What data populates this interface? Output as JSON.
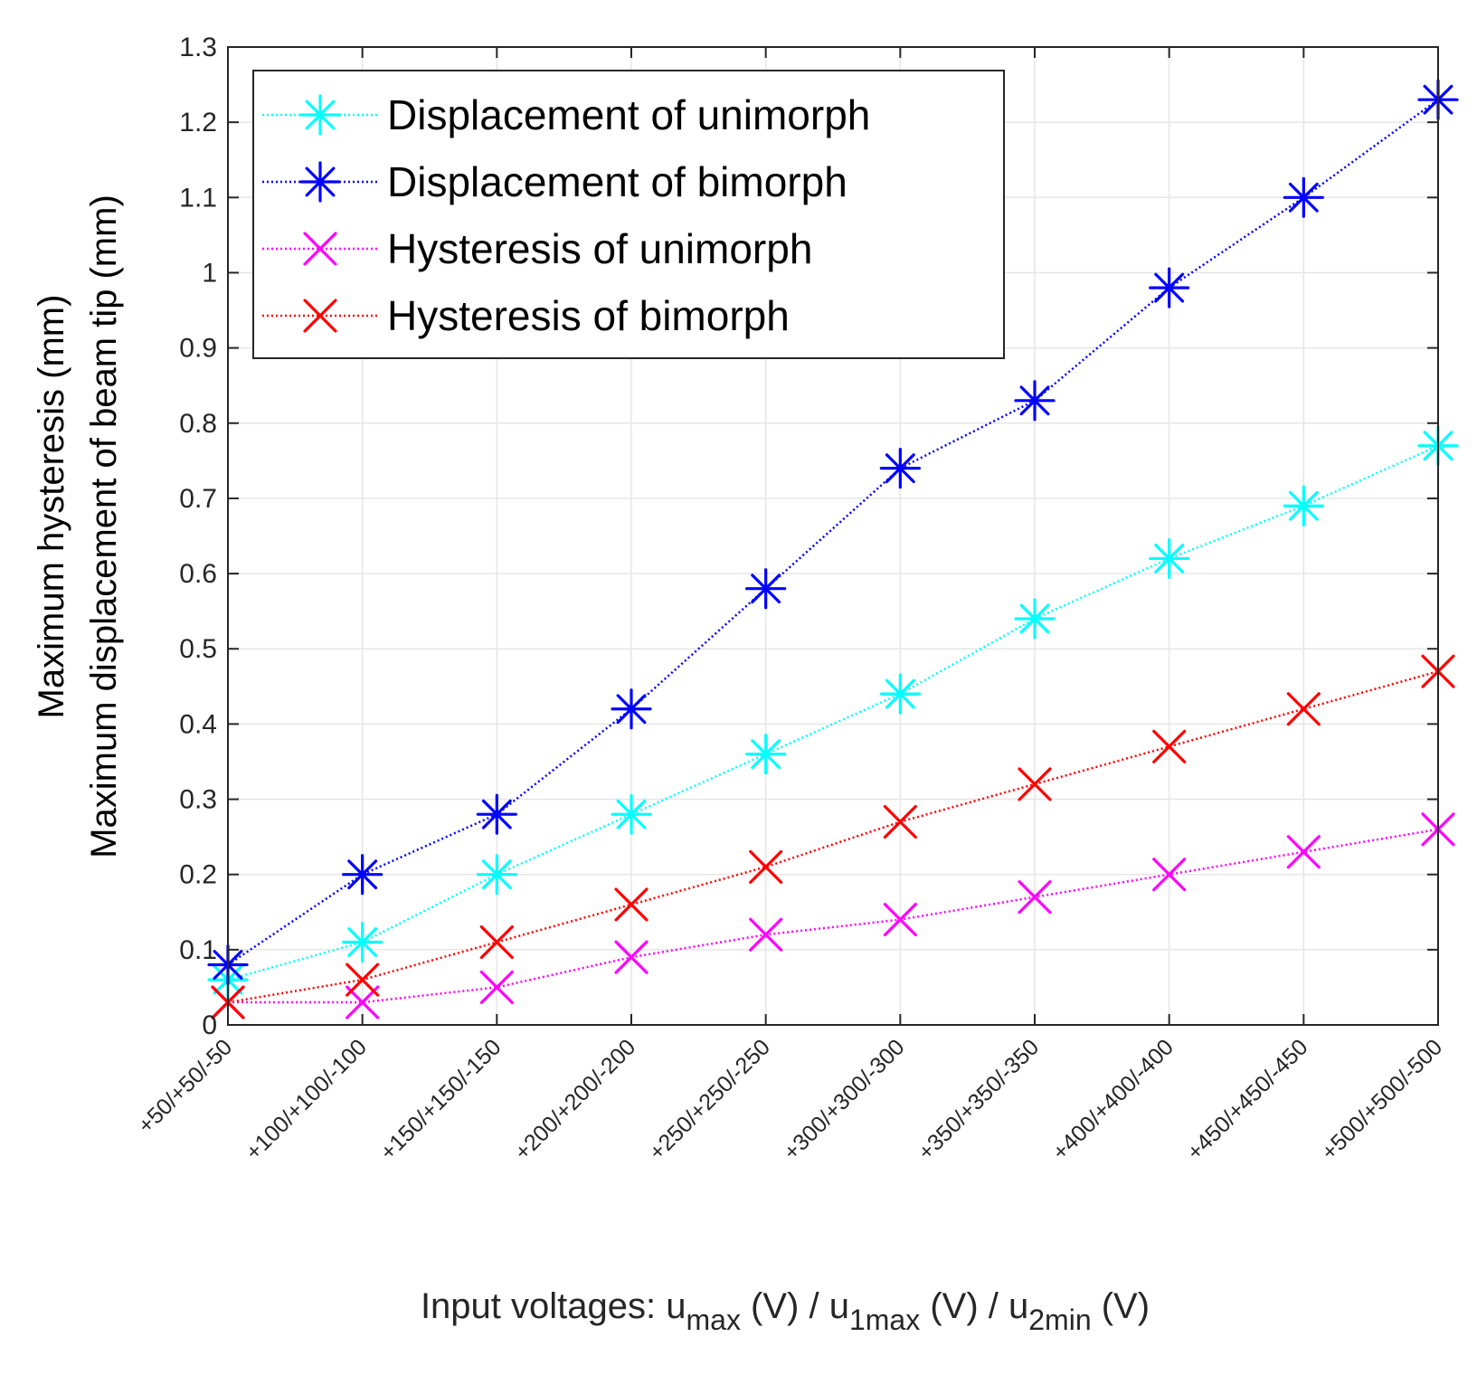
{
  "chart_data": {
    "type": "line",
    "title": "",
    "categories": [
      "+50/+50/-50",
      "+100/+100/-100",
      "+150/+150/-150",
      "+200/+200/-200",
      "+250/+250/-250",
      "+300/+300/-300",
      "+350/+350/-350",
      "+400/+400/-400",
      "+450/+450/-450",
      "+500/+500/-500"
    ],
    "series": [
      {
        "name": "Displacement of unimorph",
        "color": "#00ffff",
        "marker": "asterisk",
        "values": [
          0.06,
          0.11,
          0.2,
          0.28,
          0.36,
          0.44,
          0.54,
          0.62,
          0.69,
          0.77
        ]
      },
      {
        "name": "Displacement of bimorph",
        "color": "#0000ff",
        "marker": "asterisk",
        "values": [
          0.08,
          0.2,
          0.28,
          0.42,
          0.58,
          0.74,
          0.83,
          0.98,
          1.1,
          1.23
        ]
      },
      {
        "name": "Hysteresis of unimorph",
        "color": "#ff00ff",
        "marker": "cross",
        "values": [
          0.03,
          0.03,
          0.05,
          0.09,
          0.12,
          0.14,
          0.17,
          0.2,
          0.23,
          0.26
        ]
      },
      {
        "name": "Hysteresis of bimorph",
        "color": "#ff0000",
        "marker": "cross",
        "values": [
          0.03,
          0.06,
          0.11,
          0.16,
          0.21,
          0.27,
          0.32,
          0.37,
          0.42,
          0.47
        ]
      }
    ],
    "ylim": [
      0,
      1.3
    ],
    "yticks": [
      "0",
      "0.1",
      "0.2",
      "0.3",
      "0.4",
      "0.5",
      "0.6",
      "0.7",
      "0.8",
      "0.9",
      "1",
      "1.1",
      "1.2",
      "1.3"
    ],
    "ylabel_line1": "Maximum hysteresis (mm)",
    "ylabel_line2": "Maximum displacement of beam tip (mm)",
    "xlabel": {
      "prefix": "Input voltages: u",
      "sub1": "max",
      "part2": " (V) / u",
      "sub2": "1max",
      "part3": " (V)  / u",
      "sub3": "2min",
      "part4": " (V)"
    },
    "grid": true,
    "legend_location": "top-left"
  }
}
